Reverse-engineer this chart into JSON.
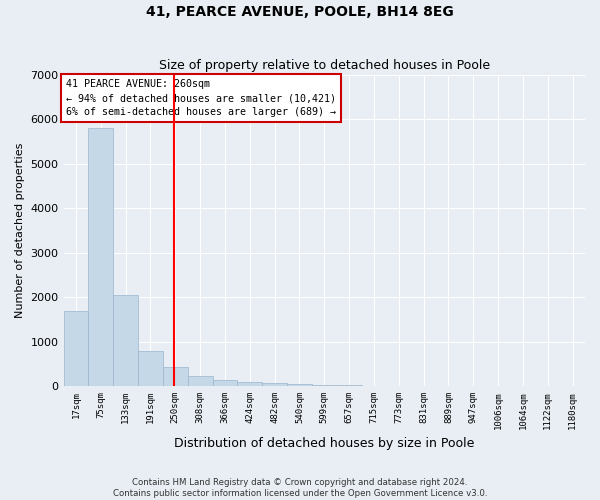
{
  "title": "41, PEARCE AVENUE, POOLE, BH14 8EG",
  "subtitle": "Size of property relative to detached houses in Poole",
  "xlabel": "Distribution of detached houses by size in Poole",
  "ylabel": "Number of detached properties",
  "bar_color": "#c5d8e8",
  "bar_edge_color": "#9ab5cc",
  "categories": [
    "17sqm",
    "75sqm",
    "133sqm",
    "191sqm",
    "250sqm",
    "308sqm",
    "366sqm",
    "424sqm",
    "482sqm",
    "540sqm",
    "599sqm",
    "657sqm",
    "715sqm",
    "773sqm",
    "831sqm",
    "889sqm",
    "947sqm",
    "1006sqm",
    "1064sqm",
    "1122sqm",
    "1180sqm"
  ],
  "values": [
    1700,
    5800,
    2050,
    800,
    430,
    220,
    130,
    100,
    75,
    50,
    30,
    20,
    10,
    5,
    0,
    0,
    0,
    0,
    0,
    0,
    0
  ],
  "ylim": [
    0,
    7000
  ],
  "yticks": [
    0,
    1000,
    2000,
    3000,
    4000,
    5000,
    6000,
    7000
  ],
  "property_label": "41 PEARCE AVENUE: 260sqm",
  "annotation_line1": "← 94% of detached houses are smaller (10,421)",
  "annotation_line2": "6% of semi-detached houses are larger (689) →",
  "red_line_bar_index": 4,
  "footnote1": "Contains HM Land Registry data © Crown copyright and database right 2024.",
  "footnote2": "Contains public sector information licensed under the Open Government Licence v3.0.",
  "background_color": "#e8eef4",
  "grid_color": "#ffffff",
  "annotation_box_color": "#ffffff",
  "annotation_box_edge": "#cc0000",
  "title_fontsize": 10,
  "subtitle_fontsize": 9
}
